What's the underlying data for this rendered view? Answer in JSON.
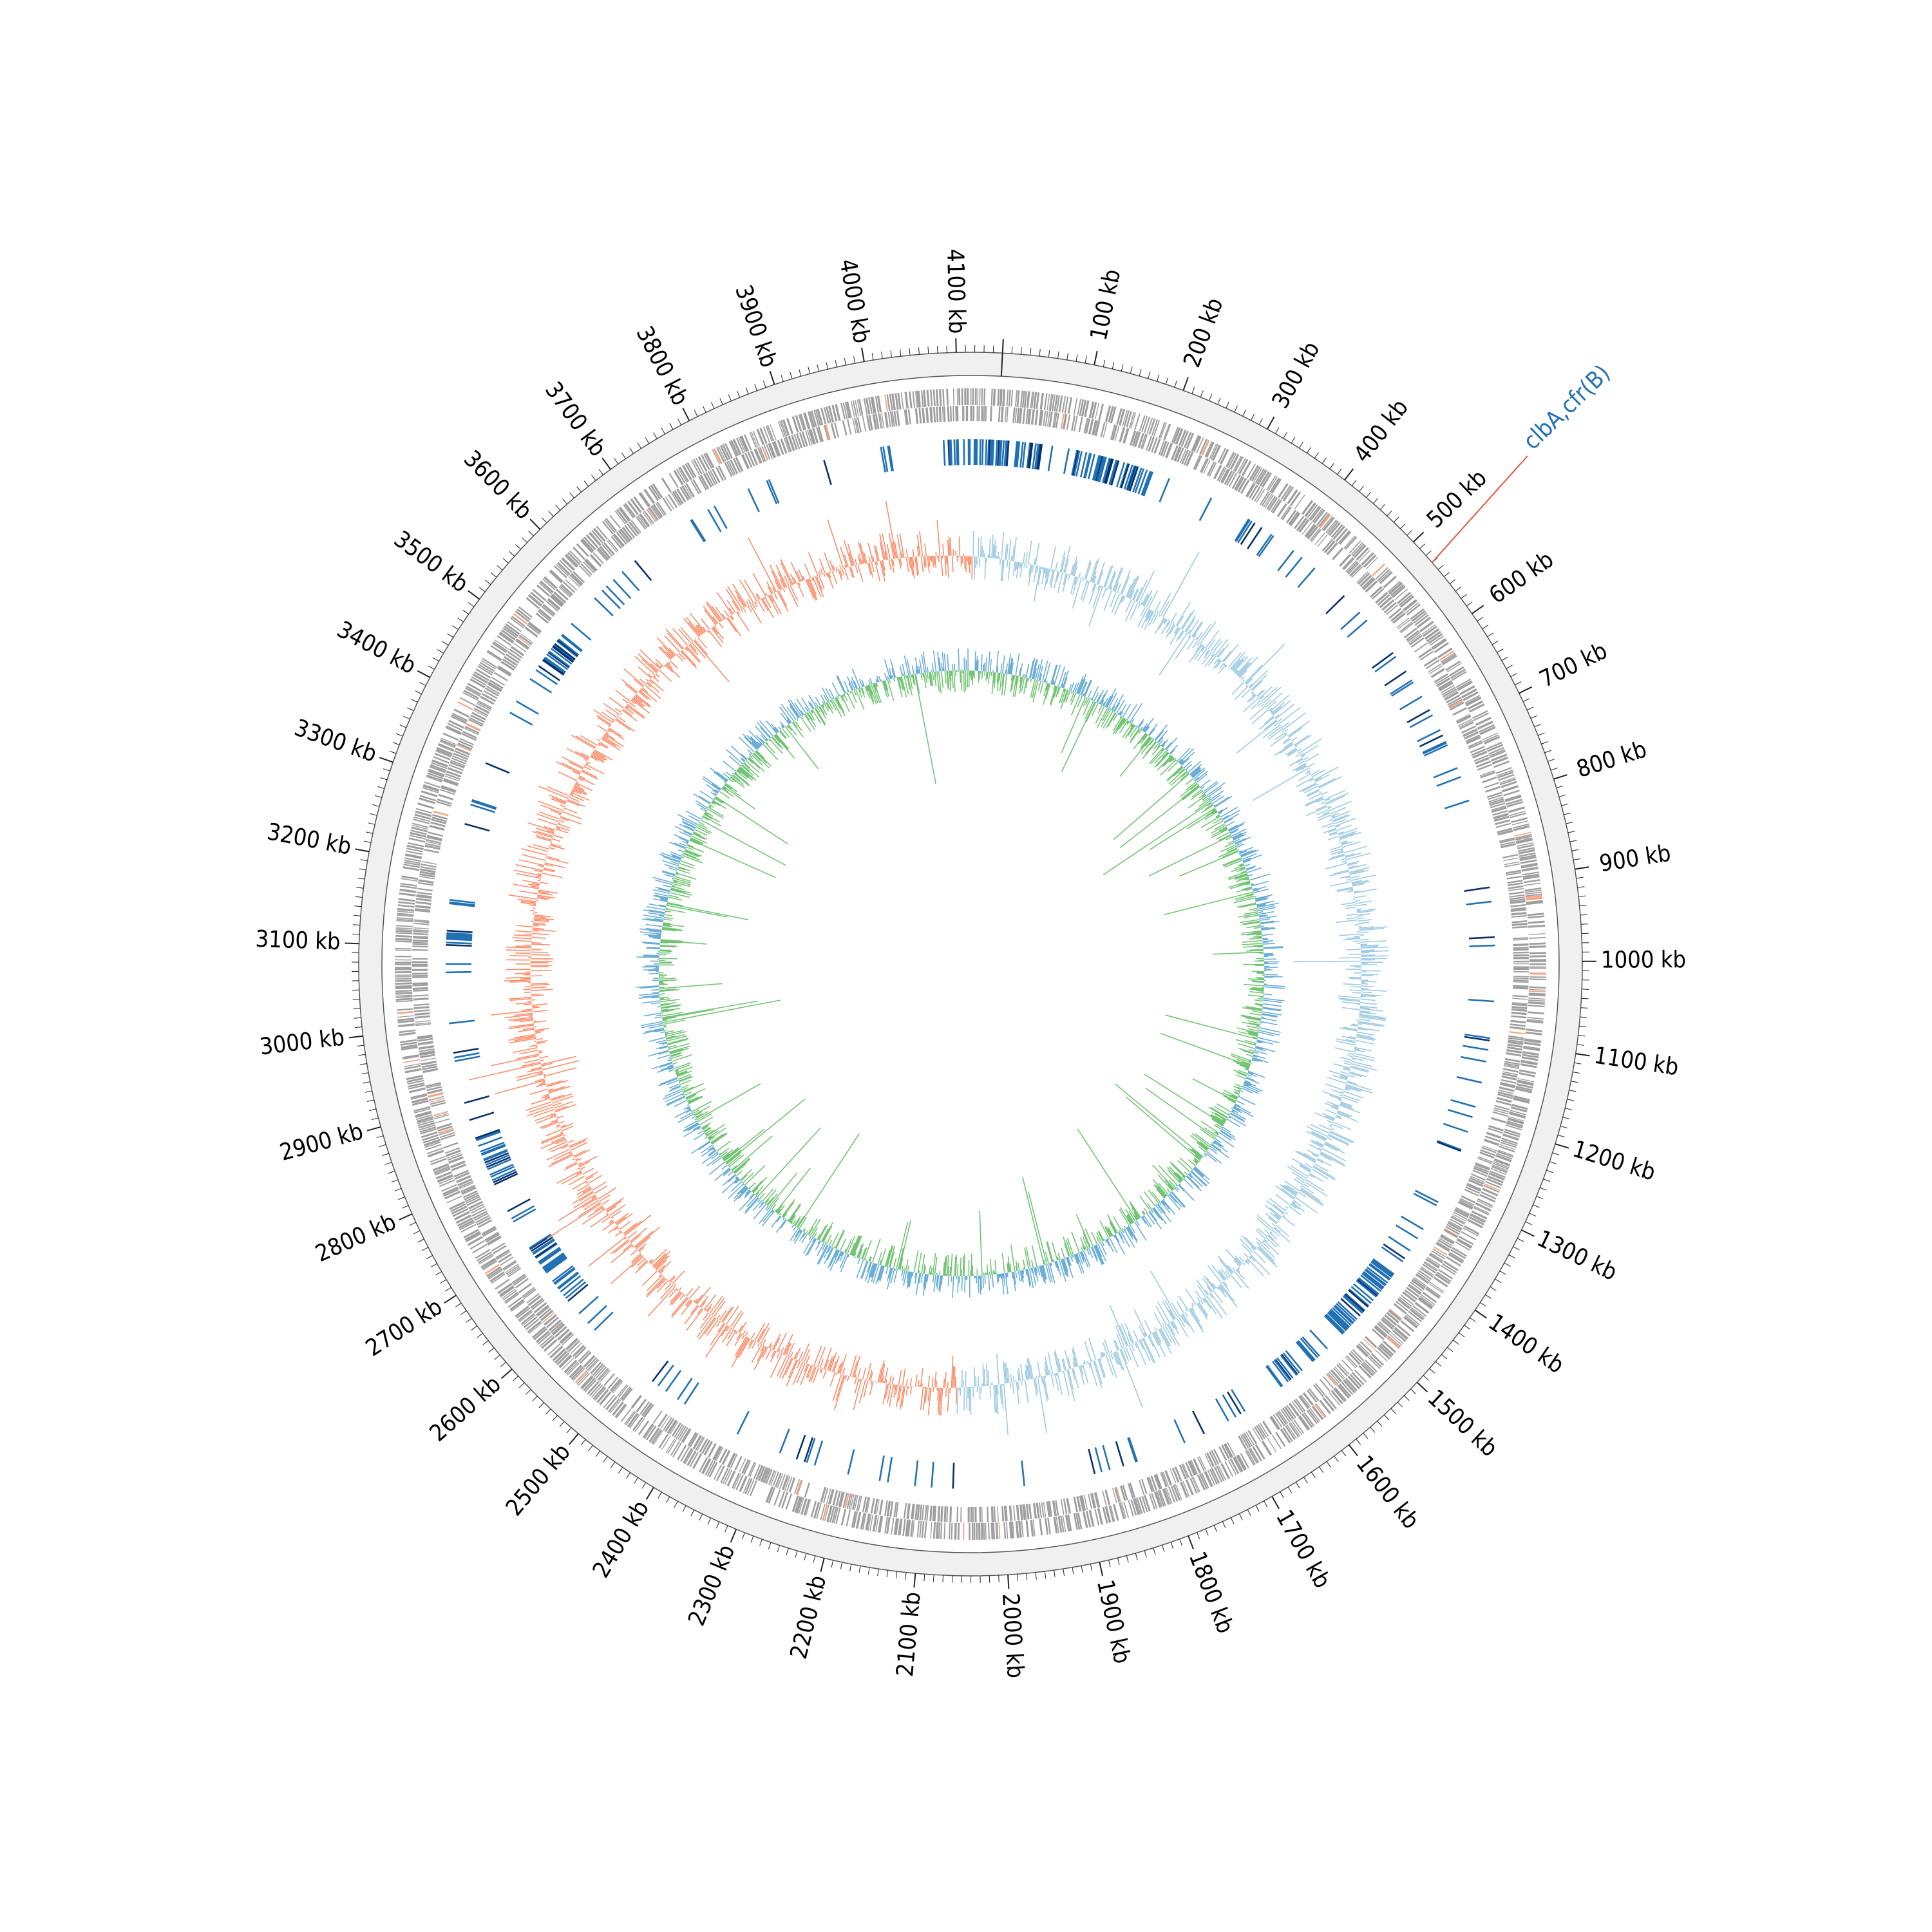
{
  "genome_map": {
    "total_kb": 4150,
    "scale_unit": "kb",
    "major_tick_step_kb": 100,
    "minor_tick_step_kb": 10,
    "scale_labels": [
      "100 kb",
      "200 kb",
      "300 kb",
      "400 kb",
      "500 kb",
      "600 kb",
      "700 kb",
      "800 kb",
      "900 kb",
      "1000 kb",
      "1100 kb",
      "1200 kb",
      "1300 kb",
      "1400 kb",
      "1500 kb",
      "1600 kb",
      "1700 kb",
      "1800 kb",
      "1900 kb",
      "2000 kb",
      "2100 kb",
      "2200 kb",
      "2300 kb",
      "2400 kb",
      "2500 kb",
      "2600 kb",
      "2700 kb",
      "2800 kb",
      "2900 kb",
      "3000 kb",
      "3100 kb",
      "3200 kb",
      "3300 kb",
      "3400 kb",
      "3500 kb",
      "3600 kb",
      "3700 kb",
      "3800 kb",
      "3900 kb",
      "4000 kb",
      "4100 kb"
    ],
    "annotations": [
      {
        "label": "clbA,cfr(B)",
        "position_kb": 530,
        "color": "#2171b5",
        "line_color": "#e8553b"
      }
    ],
    "tracks": {
      "cds_color": "#9e9e9e",
      "cds_highlight_color": "#f4a582",
      "mge_colors": [
        "#2171b5",
        "#08306b"
      ],
      "gc_content": {
        "positive_color": "#9ecae1",
        "negative_color": "#fc8d6a",
        "line_color": "#6baed6"
      },
      "gc_skew": {
        "positive_color": "#74c476",
        "negative_color": "#6baed6"
      }
    },
    "scale_ring_fill": "#f0f0f0"
  }
}
